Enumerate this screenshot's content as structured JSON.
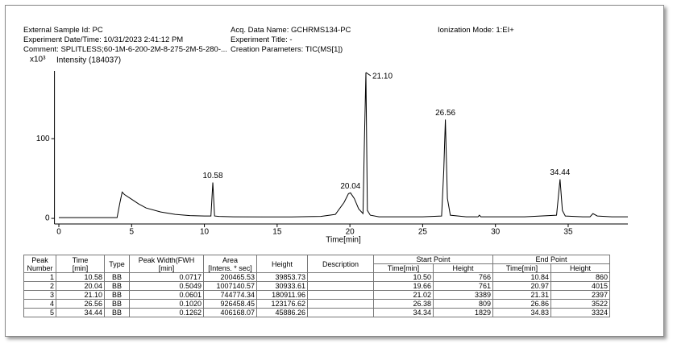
{
  "header": {
    "left": [
      "External Sample Id: PC",
      "Experiment Date/Time: 10/31/2023 2:41:12 PM",
      "Comment: SPLITLESS;60-1M-6-200-2M-8-275-2M-5-280-..."
    ],
    "middle": [
      "Acq. Data Name: GCHRMS134-PC",
      "Experiment Title: -",
      "Creation Parameters: TIC(MS[1])"
    ],
    "right": "Ionization Mode: 1:EI+"
  },
  "chart_data": {
    "type": "line",
    "y_multiplier": "x10³",
    "y_label": "Intensity (184037)",
    "x_label": "Time[min]",
    "xlim": [
      -0.3,
      39.1
    ],
    "xticks": [
      0,
      5,
      10,
      15,
      20,
      25,
      30,
      35
    ],
    "ylim": [
      -7,
      185
    ],
    "yticks": [
      0,
      100
    ],
    "series": [
      {
        "name": "TIC",
        "color": "#000000",
        "x": [
          0,
          4.0,
          4.2,
          4.35,
          4.5,
          5,
          5.5,
          6,
          7,
          8,
          9,
          10,
          10.45,
          10.58,
          10.7,
          11,
          12,
          14,
          16,
          18,
          19,
          19.6,
          19.9,
          20.04,
          20.3,
          20.6,
          20.9,
          21.0,
          21.1,
          21.2,
          21.4,
          22,
          24,
          25,
          26.3,
          26.45,
          26.56,
          26.7,
          26.9,
          28,
          28.8,
          28.9,
          29,
          30,
          32,
          34.2,
          34.44,
          34.6,
          34.8,
          36,
          36.5,
          36.7,
          37,
          38,
          39.1
        ],
        "values": [
          1,
          1,
          20,
          33,
          30,
          24,
          18,
          13,
          8,
          5,
          3.5,
          3,
          3,
          45,
          3,
          2.5,
          2,
          1.8,
          1.8,
          2.5,
          5,
          20,
          31,
          32,
          25,
          12,
          6,
          100,
          183,
          10,
          4,
          2,
          2,
          2,
          3,
          60,
          124,
          25,
          4,
          2,
          2,
          4,
          2,
          2,
          2,
          4,
          49,
          10,
          3,
          2,
          2,
          6,
          3,
          2,
          2
        ]
      }
    ],
    "annotations": [
      {
        "text": "10.58",
        "x": 10.58,
        "y": 45
      },
      {
        "text": "20.04",
        "x": 20.04,
        "y": 32
      },
      {
        "text": "21.10",
        "x": 21.1,
        "y": 183
      },
      {
        "text": "26.56",
        "x": 26.56,
        "y": 124
      },
      {
        "text": "34.44",
        "x": 34.44,
        "y": 49
      }
    ]
  },
  "table": {
    "header_top": [
      "Peak\nNumber",
      "Time\n[min]",
      "Type",
      "Peak Width(FWH\n[min]",
      "Area\n[Intens. * sec]",
      "Height",
      "Description",
      "Start Point",
      "End Point"
    ],
    "header_sub": [
      "Time[min]",
      "Height",
      "Time[min]",
      "Height"
    ],
    "rows": [
      [
        "1",
        "10.58",
        "BB",
        "0.0717",
        "200465.53",
        "39853.73",
        "10.50",
        "766",
        "10.84",
        "860"
      ],
      [
        "2",
        "20.04",
        "BB",
        "0.5049",
        "1007140.57",
        "30933.61",
        "19.66",
        "761",
        "20.97",
        "4015"
      ],
      [
        "3",
        "21.10",
        "BB",
        "0.0601",
        "744774.34",
        "180911.96",
        "21.02",
        "3389",
        "21.31",
        "2397"
      ],
      [
        "4",
        "26.56",
        "BB",
        "0.1020",
        "926458.45",
        "123176.62",
        "26.38",
        "809",
        "26.86",
        "3522"
      ],
      [
        "5",
        "34.44",
        "BB",
        "0.1262",
        "406168.07",
        "45886.26",
        "34.34",
        "1829",
        "34.83",
        "3324"
      ]
    ]
  }
}
